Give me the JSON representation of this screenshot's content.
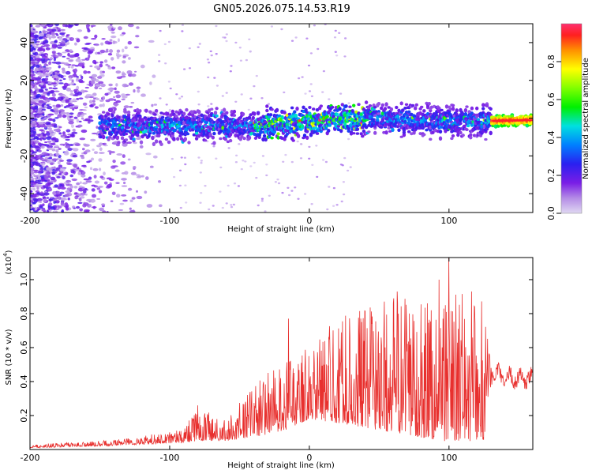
{
  "title": "GN05.2026.075.14.53.R19",
  "colors": {
    "snr_line": "#e8302e",
    "axis": "#000000"
  },
  "chart_data": [
    {
      "type": "heatmap",
      "name": "spectrogram",
      "xlabel": "Height of straight line (km)",
      "ylabel": "Frequency (Hz)",
      "xlim": [
        -200,
        160
      ],
      "ylim": [
        -50,
        50
      ],
      "xticks": [
        -200,
        -100,
        0,
        100
      ],
      "xtick_labels": [
        "-200",
        "-100",
        "0",
        "100"
      ],
      "yticks": [
        -40,
        -20,
        0,
        20,
        40
      ],
      "ytick_labels": [
        "-40",
        "-20",
        "0",
        "20",
        "40"
      ],
      "ridge_center_hz": [
        {
          "x": -150,
          "y": -4
        },
        {
          "x": -100,
          "y": -4
        },
        {
          "x": -50,
          "y": -4
        },
        {
          "x": 0,
          "y": -2
        },
        {
          "x": 50,
          "y": 0
        },
        {
          "x": 100,
          "y": -2
        },
        {
          "x": 160,
          "y": -1
        }
      ],
      "colorbar": {
        "label": "Normalized spectral amplitude",
        "range": [
          0,
          1
        ],
        "ticks": [
          0.0,
          0.2,
          0.4,
          0.6,
          0.8
        ],
        "tick_labels": [
          "0.0",
          "0.2",
          "0.4",
          "0.6",
          "0.8"
        ]
      }
    },
    {
      "type": "line",
      "name": "snr",
      "xlabel": "Height of straight line (km)",
      "ylabel": "SNR (10 * v/v)",
      "scale_label": "(x10",
      "scale_exponent": "4",
      "scale_suffix": ")",
      "xlim": [
        -200,
        160
      ],
      "ylim": [
        0,
        1.13
      ],
      "xticks": [
        -200,
        -100,
        0,
        100
      ],
      "xtick_labels": [
        "-200",
        "-100",
        "0",
        "100"
      ],
      "yticks": [
        0.2,
        0.4,
        0.6,
        0.8,
        1.0
      ],
      "ytick_labels": [
        "0.2",
        "0.4",
        "0.6",
        "0.8",
        "1.0"
      ],
      "envelope": [
        {
          "x": -200,
          "base": 0.01,
          "amp": 0.02
        },
        {
          "x": -150,
          "base": 0.02,
          "amp": 0.03
        },
        {
          "x": -120,
          "base": 0.03,
          "amp": 0.05
        },
        {
          "x": -90,
          "base": 0.04,
          "amp": 0.08
        },
        {
          "x": -80,
          "base": 0.05,
          "amp": 0.2
        },
        {
          "x": -60,
          "base": 0.05,
          "amp": 0.12
        },
        {
          "x": -35,
          "base": 0.08,
          "amp": 0.35
        },
        {
          "x": -15,
          "base": 0.12,
          "amp": 0.4
        },
        {
          "x": 0,
          "base": 0.18,
          "amp": 0.45
        },
        {
          "x": 25,
          "base": 0.15,
          "amp": 0.65
        },
        {
          "x": 60,
          "base": 0.1,
          "amp": 0.8
        },
        {
          "x": 95,
          "base": 0.05,
          "amp": 0.9
        },
        {
          "x": 125,
          "base": 0.05,
          "amp": 0.85
        },
        {
          "x": 130,
          "base": 0.45,
          "amp": 0.05
        },
        {
          "x": 145,
          "base": 0.42,
          "amp": 0.04
        },
        {
          "x": 160,
          "base": 0.42,
          "amp": 0.05
        }
      ],
      "peaks": [
        {
          "x": -80,
          "y": 0.26
        },
        {
          "x": -15,
          "y": 0.77
        },
        {
          "x": 63,
          "y": 0.93
        },
        {
          "x": 93,
          "y": 1.0
        },
        {
          "x": 100,
          "y": 1.13
        },
        {
          "x": 116,
          "y": 0.93
        }
      ]
    }
  ]
}
